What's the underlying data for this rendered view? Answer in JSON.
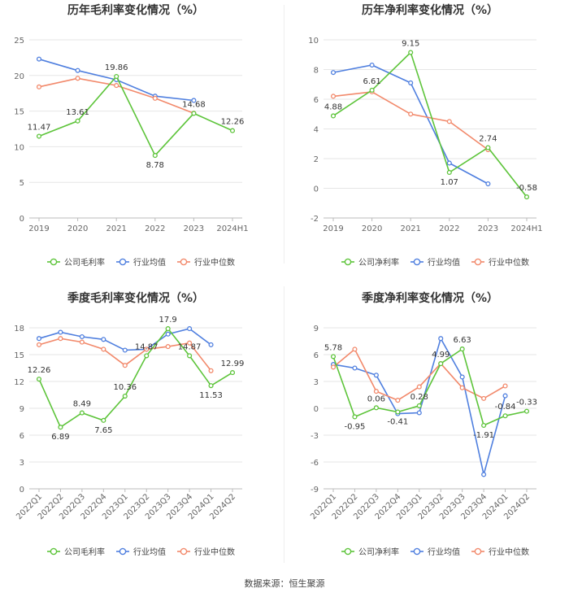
{
  "source_label": "数据来源：恒生聚源",
  "colors": {
    "company": "#5dc43a",
    "avg": "#4f7fdf",
    "median": "#f2896b",
    "grid": "#e6e6e6",
    "axis_text": "#666666",
    "title": "#333333",
    "label": "#333333"
  },
  "chart_data": [
    {
      "type": "line",
      "title": "历年毛利率变化情况（%）",
      "categories": [
        "2019",
        "2020",
        "2021",
        "2022",
        "2023",
        "2024H1"
      ],
      "ylim": [
        0,
        25
      ],
      "yticks": [
        0,
        5,
        10,
        15,
        20,
        25
      ],
      "rotate_x": false,
      "series": [
        {
          "name": "公司毛利率",
          "key": "company",
          "values": [
            11.47,
            13.61,
            19.86,
            8.78,
            14.68,
            12.26
          ],
          "labeled": true
        },
        {
          "name": "行业均值",
          "key": "avg",
          "values": [
            22.3,
            20.7,
            19.4,
            17.1,
            16.5,
            null
          ],
          "labeled": false
        },
        {
          "name": "行业中位数",
          "key": "median",
          "values": [
            18.4,
            19.6,
            18.6,
            16.8,
            14.7,
            null
          ],
          "labeled": false
        }
      ]
    },
    {
      "type": "line",
      "title": "历年净利率变化情况（%）",
      "categories": [
        "2019",
        "2020",
        "2021",
        "2022",
        "2023",
        "2024H1"
      ],
      "ylim": [
        -2,
        10
      ],
      "yticks": [
        -2,
        0,
        2,
        4,
        6,
        8,
        10
      ],
      "rotate_x": false,
      "series": [
        {
          "name": "公司净利率",
          "key": "company",
          "values": [
            4.88,
            6.61,
            9.15,
            1.07,
            2.74,
            -0.58
          ],
          "labeled": true
        },
        {
          "name": "行业均值",
          "key": "avg",
          "values": [
            7.8,
            8.3,
            7.1,
            1.7,
            0.3,
            null
          ],
          "labeled": false
        },
        {
          "name": "行业中位数",
          "key": "median",
          "values": [
            6.2,
            6.5,
            5.0,
            4.5,
            2.6,
            null
          ],
          "labeled": false
        }
      ]
    },
    {
      "type": "line",
      "title": "季度毛利率变化情况（%）",
      "categories": [
        "2022Q1",
        "2022Q2",
        "2022Q3",
        "2022Q4",
        "2023Q1",
        "2023Q2",
        "2023Q3",
        "2023Q4",
        "2024Q1",
        "2024Q2"
      ],
      "ylim": [
        0,
        18
      ],
      "yticks": [
        0,
        3,
        6,
        9,
        12,
        15,
        18
      ],
      "rotate_x": true,
      "series": [
        {
          "name": "公司毛利率",
          "key": "company",
          "values": [
            12.26,
            6.89,
            8.49,
            7.65,
            10.36,
            14.87,
            17.9,
            14.87,
            11.53,
            12.99
          ],
          "labeled": true
        },
        {
          "name": "行业均值",
          "key": "avg",
          "values": [
            16.8,
            17.5,
            17.0,
            16.7,
            15.5,
            15.6,
            17.3,
            17.9,
            16.1,
            null
          ],
          "labeled": false
        },
        {
          "name": "行业中位数",
          "key": "median",
          "values": [
            16.1,
            16.8,
            16.4,
            15.6,
            13.8,
            15.6,
            15.9,
            16.3,
            13.2,
            null
          ],
          "labeled": false
        }
      ]
    },
    {
      "type": "line",
      "title": "季度净利率变化情况（%）",
      "categories": [
        "2022Q1",
        "2022Q2",
        "2022Q3",
        "2022Q4",
        "2023Q1",
        "2023Q2",
        "2023Q3",
        "2023Q4",
        "2024Q1",
        "2024Q2"
      ],
      "ylim": [
        -9,
        9
      ],
      "yticks": [
        -9,
        -6,
        -3,
        0,
        3,
        6,
        9
      ],
      "rotate_x": true,
      "series": [
        {
          "name": "公司净利率",
          "key": "company",
          "values": [
            5.78,
            -0.95,
            0.06,
            -0.41,
            0.28,
            4.99,
            6.63,
            -1.91,
            -0.84,
            -0.33
          ],
          "labeled": true
        },
        {
          "name": "行业均值",
          "key": "avg",
          "values": [
            4.9,
            4.5,
            3.7,
            -0.6,
            -0.5,
            7.8,
            3.5,
            -7.4,
            1.4,
            null
          ],
          "labeled": false
        },
        {
          "name": "行业中位数",
          "key": "median",
          "values": [
            4.6,
            6.6,
            1.9,
            0.9,
            2.4,
            5.0,
            2.3,
            1.1,
            2.5,
            null
          ],
          "labeled": false
        }
      ]
    }
  ]
}
